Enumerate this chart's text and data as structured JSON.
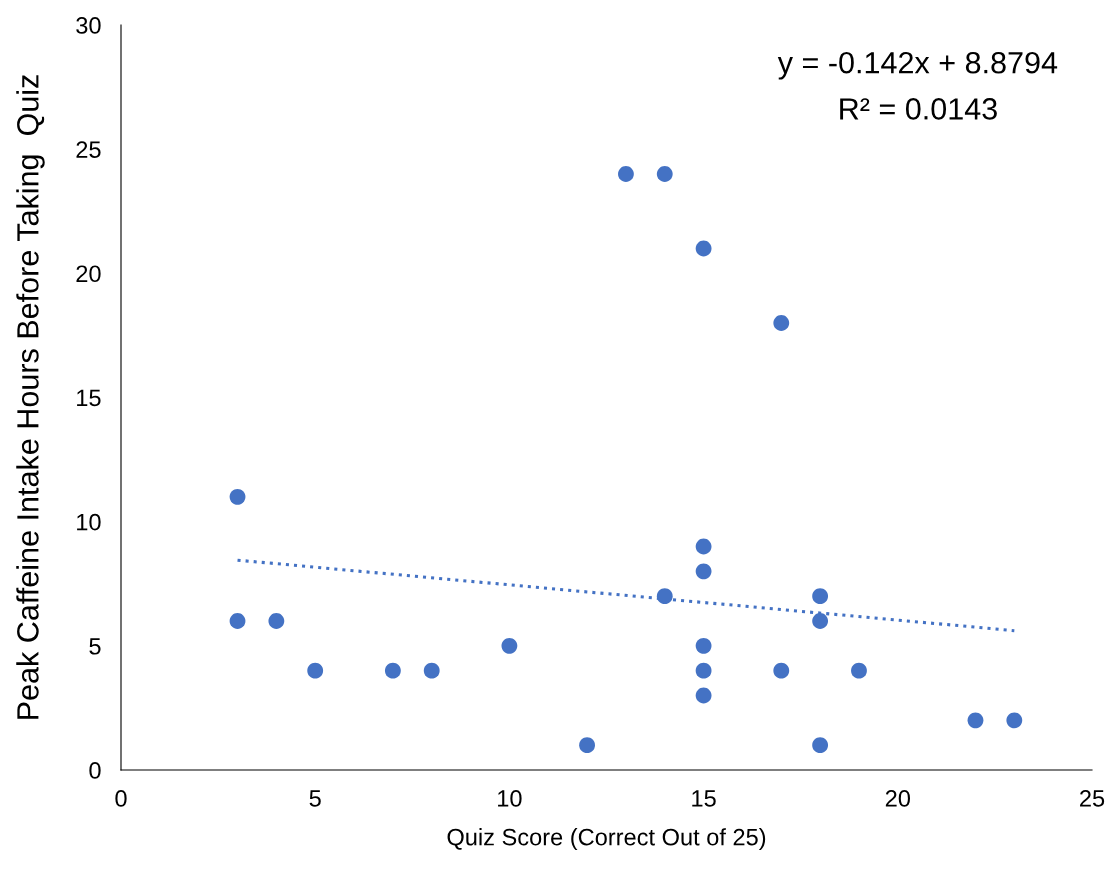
{
  "chart_data": {
    "type": "scatter",
    "xlabel": "Quiz Score (Correct Out of 25)",
    "ylabel": "Peak Caffeine Intake Hours Before Taking  Quiz",
    "xlim": [
      0,
      25
    ],
    "xticks": [
      0,
      5,
      10,
      15,
      20,
      25
    ],
    "ylim": [
      0,
      30
    ],
    "yticks": [
      0,
      5,
      10,
      15,
      20,
      25,
      30
    ],
    "grid": false,
    "marker": "circle",
    "series": [
      {
        "type": "scatter",
        "color": "#4472c4",
        "x": [
          3,
          3,
          4,
          5,
          7,
          8,
          10,
          12,
          13,
          14,
          14,
          15,
          15,
          15,
          15,
          15,
          15,
          17,
          17,
          18,
          18,
          18,
          19,
          22,
          23
        ],
        "values": [
          11,
          6,
          6,
          4,
          4,
          4,
          5,
          1,
          24,
          24,
          7,
          21,
          9,
          8,
          5,
          4,
          3,
          18,
          4,
          7,
          6,
          1,
          4,
          2,
          2
        ]
      },
      {
        "type": "line",
        "color": "#4472c4",
        "line_style": "dotted",
        "marker": "none",
        "x": [
          3,
          23
        ],
        "values": [
          8.45,
          5.61
        ]
      }
    ],
    "annotations": [
      "y = -0.142x + 8.8794",
      "R² = 0.0143"
    ]
  }
}
